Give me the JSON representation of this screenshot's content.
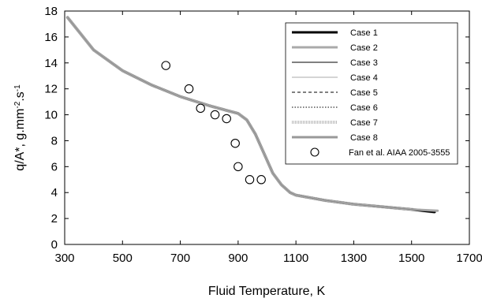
{
  "chart_data": {
    "type": "line",
    "title": "",
    "xlabel": "Fluid Temperature, K",
    "ylabel": "q/A*, g.mm-2.s-1",
    "ylabel_parts": {
      "main": "q/A*, g.mm",
      "sup1": "-2",
      "mid": ".s",
      "sup2": "-1"
    },
    "xlim": [
      300,
      1700
    ],
    "ylim": [
      0,
      18
    ],
    "xticks": [
      "300",
      "500",
      "700",
      "900",
      "1100",
      "1300",
      "1500",
      "1700"
    ],
    "yticks": [
      "0",
      "2",
      "4",
      "6",
      "8",
      "10",
      "12",
      "14",
      "16",
      "18"
    ],
    "grid": false,
    "legend_position": "top-right",
    "series": [
      {
        "name": "Case 1",
        "style": "solid-thick",
        "color": "#000000",
        "x": [
          310,
          400,
          500,
          600,
          700,
          800,
          850,
          900,
          930,
          960,
          990,
          1020,
          1050,
          1080,
          1100,
          1150,
          1200,
          1300,
          1400,
          1500,
          1580
        ],
        "y": [
          17.5,
          15.0,
          13.4,
          12.3,
          11.4,
          10.7,
          10.4,
          10.1,
          9.6,
          8.5,
          7.0,
          5.5,
          4.6,
          4.0,
          3.8,
          3.6,
          3.4,
          3.1,
          2.9,
          2.7,
          2.5
        ]
      },
      {
        "name": "Case 2",
        "style": "solid-thick",
        "color": "#aaaaaa",
        "x": [
          310,
          400,
          500,
          600,
          700,
          800,
          850,
          900,
          930,
          960,
          990,
          1020,
          1050,
          1080,
          1100,
          1150,
          1200,
          1300,
          1400,
          1500,
          1590
        ],
        "y": [
          17.5,
          15.0,
          13.4,
          12.3,
          11.4,
          10.7,
          10.4,
          10.1,
          9.6,
          8.5,
          7.0,
          5.5,
          4.6,
          4.0,
          3.8,
          3.6,
          3.4,
          3.1,
          2.9,
          2.7,
          2.6
        ]
      },
      {
        "name": "Case 3",
        "style": "solid-thin",
        "color": "#000000",
        "x": [
          310,
          400,
          500,
          600,
          700,
          800,
          850,
          900,
          930,
          960,
          990,
          1020,
          1050,
          1080,
          1100,
          1150,
          1200,
          1300,
          1400,
          1500,
          1580
        ],
        "y": [
          17.5,
          15.0,
          13.4,
          12.3,
          11.4,
          10.7,
          10.4,
          10.1,
          9.6,
          8.5,
          7.0,
          5.5,
          4.6,
          4.0,
          3.8,
          3.6,
          3.4,
          3.1,
          2.9,
          2.7,
          2.5
        ]
      },
      {
        "name": "Case 4",
        "style": "solid-thin",
        "color": "#aaaaaa",
        "x": [
          310,
          400,
          500,
          600,
          700,
          800,
          850,
          900,
          930,
          960,
          990,
          1020,
          1050,
          1080,
          1100,
          1150,
          1200,
          1300,
          1400,
          1500,
          1580
        ],
        "y": [
          17.5,
          15.0,
          13.4,
          12.3,
          11.4,
          10.7,
          10.4,
          10.1,
          9.6,
          8.5,
          7.0,
          5.5,
          4.6,
          4.0,
          3.8,
          3.6,
          3.4,
          3.1,
          2.9,
          2.7,
          2.5
        ]
      },
      {
        "name": "Case 5",
        "style": "dashed",
        "color": "#000000",
        "x": [
          310,
          400,
          500,
          600,
          700,
          800,
          850,
          900,
          930,
          960,
          990,
          1020,
          1050,
          1080,
          1100,
          1150,
          1200,
          1300,
          1400,
          1500,
          1580
        ],
        "y": [
          17.5,
          15.0,
          13.4,
          12.3,
          11.4,
          10.7,
          10.4,
          10.1,
          9.6,
          8.5,
          7.0,
          5.5,
          4.6,
          4.0,
          3.8,
          3.6,
          3.4,
          3.1,
          2.9,
          2.7,
          2.5
        ]
      },
      {
        "name": "Case 6",
        "style": "dotted",
        "color": "#000000",
        "x": [
          310,
          400,
          500,
          600,
          700,
          800,
          850,
          900,
          930,
          960,
          990,
          1020,
          1050,
          1080,
          1100,
          1150,
          1200,
          1300,
          1400,
          1500,
          1580
        ],
        "y": [
          17.5,
          15.0,
          13.4,
          12.3,
          11.4,
          10.7,
          10.4,
          10.1,
          9.6,
          8.5,
          7.0,
          5.5,
          4.6,
          4.0,
          3.8,
          3.6,
          3.4,
          3.1,
          2.9,
          2.7,
          2.5
        ]
      },
      {
        "name": "Case 7",
        "style": "dotted-thick",
        "color": "#bbbbbb",
        "x": [
          310,
          400,
          500,
          600,
          700,
          800,
          850,
          900,
          930,
          960,
          990,
          1020,
          1050,
          1080,
          1100,
          1150,
          1200,
          1300,
          1400,
          1500,
          1580
        ],
        "y": [
          17.5,
          15.0,
          13.4,
          12.3,
          11.4,
          10.7,
          10.4,
          10.1,
          9.6,
          8.5,
          7.0,
          5.5,
          4.6,
          4.0,
          3.8,
          3.6,
          3.4,
          3.1,
          2.9,
          2.7,
          2.5
        ]
      },
      {
        "name": "Case 8",
        "style": "solid-thick",
        "color": "#999999",
        "x": [
          310,
          400,
          500,
          600,
          700,
          800,
          850,
          900,
          930,
          960,
          990,
          1020,
          1050,
          1080,
          1100,
          1150,
          1200,
          1300,
          1400,
          1500,
          1580
        ],
        "y": [
          17.5,
          15.0,
          13.4,
          12.3,
          11.4,
          10.7,
          10.4,
          10.1,
          9.6,
          8.5,
          7.0,
          5.5,
          4.6,
          4.0,
          3.8,
          3.6,
          3.4,
          3.1,
          2.9,
          2.7,
          2.5
        ]
      }
    ],
    "scatter": {
      "name": "Fan et al. AIAA 2005-3555",
      "marker": "open-circle",
      "x": [
        650,
        730,
        770,
        820,
        860,
        890,
        900,
        940,
        980
      ],
      "y": [
        13.8,
        12.0,
        10.5,
        10.0,
        9.7,
        7.8,
        6.0,
        5.0,
        5.0
      ]
    }
  }
}
